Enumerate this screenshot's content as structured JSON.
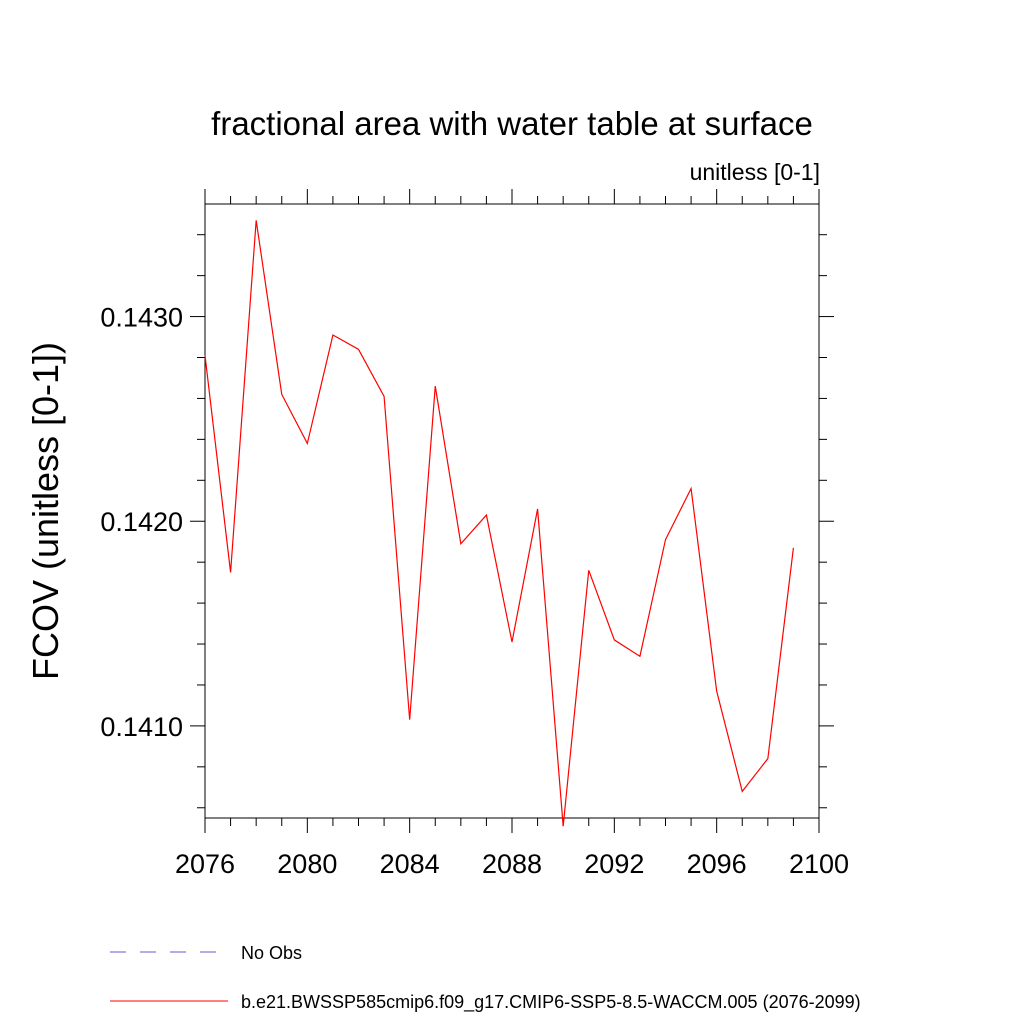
{
  "chart_data": {
    "type": "line",
    "title": "fractional area with water table at surface",
    "subtitle": "unitless [0-1]",
    "xlabel": "",
    "ylabel": "FCOV  (unitless [0-1])",
    "xlim": [
      2076,
      2100
    ],
    "ylim": [
      0.14055,
      0.14355
    ],
    "x_ticks": [
      2076,
      2080,
      2084,
      2088,
      2092,
      2096,
      2100
    ],
    "x_tick_labels": [
      "2076",
      "2080",
      "2084",
      "2088",
      "2092",
      "2096",
      "2100"
    ],
    "y_ticks": [
      0.141,
      0.142,
      0.143
    ],
    "y_tick_labels": [
      "0.1410",
      "0.1420",
      "0.1430"
    ],
    "y_minor_step": 0.0002,
    "grid": false,
    "legend_position": "bottom",
    "legend": [
      {
        "label": "No Obs",
        "color": "#6a5acd",
        "style": "dashed"
      },
      {
        "label": "b.e21.BWSSP585cmip6.f09_g17.CMIP6-SSP5-8.5-WACCM.005 (2076-2099)",
        "color": "#ff0000",
        "style": "solid"
      }
    ],
    "series": [
      {
        "name": "b.e21.BWSSP585cmip6.f09_g17.CMIP6-SSP5-8.5-WACCM.005 (2076-2099)",
        "color": "#ff0000",
        "x": [
          2076,
          2077,
          2078,
          2079,
          2080,
          2081,
          2082,
          2083,
          2084,
          2085,
          2086,
          2087,
          2088,
          2089,
          2090,
          2091,
          2092,
          2093,
          2094,
          2095,
          2096,
          2097,
          2098,
          2099
        ],
        "y": [
          0.14281,
          0.14175,
          0.14347,
          0.14262,
          0.14238,
          0.14291,
          0.14284,
          0.14261,
          0.14103,
          0.14266,
          0.14189,
          0.14203,
          0.14141,
          0.14206,
          0.14051,
          0.14176,
          0.14142,
          0.14134,
          0.14191,
          0.14216,
          0.14117,
          0.14068,
          0.14084,
          0.14187
        ]
      }
    ]
  }
}
